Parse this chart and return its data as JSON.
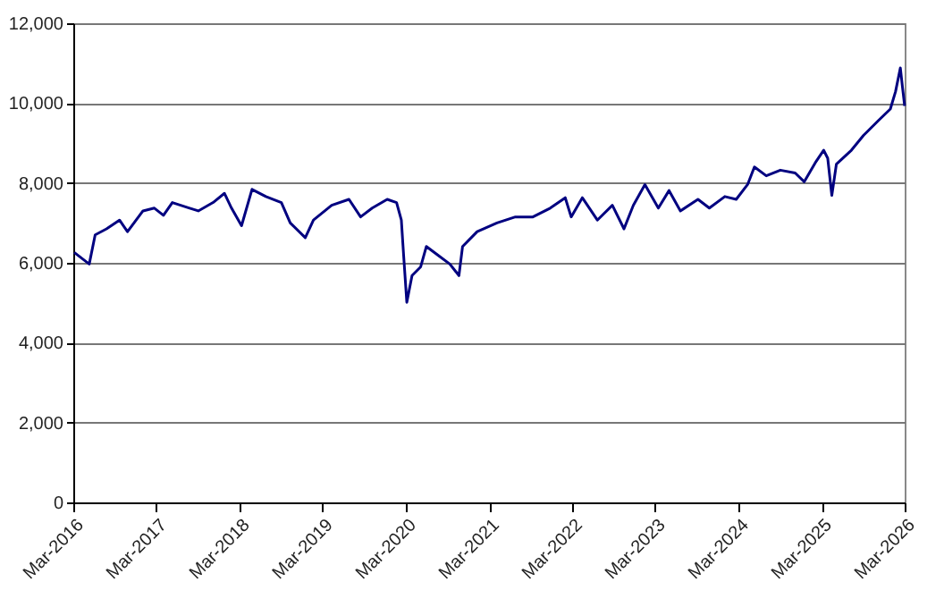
{
  "chart_data": {
    "type": "line",
    "x": [
      "2016-03-05",
      "2016-05-10",
      "2016-06-05",
      "2016-07-25",
      "2016-09-20",
      "2016-10-25",
      "2017-01-01",
      "2017-02-20",
      "2017-04-01",
      "2017-05-10",
      "2017-07-25",
      "2017-09-01",
      "2017-11-05",
      "2017-12-25",
      "2018-01-25",
      "2018-03-10",
      "2018-04-25",
      "2018-06-25",
      "2018-09-01",
      "2018-10-10",
      "2018-12-15",
      "2019-01-20",
      "2019-04-10",
      "2019-06-25",
      "2019-08-15",
      "2019-10-05",
      "2019-12-10",
      "2020-01-20",
      "2020-02-10",
      "2020-02-20",
      "2020-03-05",
      "2020-03-28",
      "2020-05-05",
      "2020-05-30",
      "2020-07-20",
      "2020-09-10",
      "2020-10-20",
      "2020-11-05",
      "2021-01-08",
      "2021-04-05",
      "2021-06-25",
      "2021-09-10",
      "2021-11-25",
      "2022-01-30",
      "2022-02-25",
      "2022-04-15",
      "2022-06-20",
      "2022-08-25",
      "2022-10-15",
      "2022-11-25",
      "2023-01-15",
      "2023-03-15",
      "2023-05-01",
      "2023-06-20",
      "2023-09-05",
      "2023-10-25",
      "2024-01-01",
      "2024-02-20",
      "2024-04-10",
      "2024-05-10",
      "2024-07-01",
      "2024-09-01",
      "2024-11-05",
      "2024-12-15",
      "2025-02-05",
      "2025-03-10",
      "2025-03-28",
      "2025-04-15",
      "2025-05-05",
      "2025-07-10",
      "2025-09-01",
      "2025-11-05",
      "2025-12-28",
      "2026-01-20",
      "2026-02-10",
      "2026-02-20",
      "2026-03-01"
    ],
    "series": [
      {
        "color": "#000080",
        "values": [
          6260,
          5970,
          6700,
          6850,
          7070,
          6780,
          7300,
          7370,
          7190,
          7510,
          7370,
          7300,
          7510,
          7740,
          7370,
          6930,
          7840,
          7660,
          7510,
          7000,
          6630,
          7070,
          7440,
          7590,
          7150,
          7370,
          7590,
          7510,
          7070,
          6190,
          5010,
          5680,
          5900,
          6410,
          6190,
          5970,
          5680,
          6410,
          6780,
          7000,
          7150,
          7150,
          7370,
          7630,
          7150,
          7630,
          7070,
          7440,
          6850,
          7440,
          7960,
          7370,
          7810,
          7300,
          7590,
          7370,
          7660,
          7590,
          7960,
          8400,
          8180,
          8320,
          8250,
          8030,
          8540,
          8820,
          8620,
          7690,
          8470,
          8820,
          9190,
          9560,
          9850,
          10290,
          10880,
          10370,
          9930
        ]
      }
    ],
    "xlim": [
      "2016-03",
      "2026-03"
    ],
    "xticks": [
      {
        "value": "2016-03",
        "label": "Mar-2016"
      },
      {
        "value": "2017-03",
        "label": "Mar-2017"
      },
      {
        "value": "2018-03",
        "label": "Mar-2018"
      },
      {
        "value": "2019-03",
        "label": "Mar-2019"
      },
      {
        "value": "2020-03",
        "label": "Mar-2020"
      },
      {
        "value": "2021-03",
        "label": "Mar-2021"
      },
      {
        "value": "2022-03",
        "label": "Mar-2022"
      },
      {
        "value": "2023-03",
        "label": "Mar-2023"
      },
      {
        "value": "2024-03",
        "label": "Mar-2024"
      },
      {
        "value": "2025-03",
        "label": "Mar-2025"
      },
      {
        "value": "2026-03",
        "label": "Mar-2026"
      }
    ],
    "ylim": [
      0,
      12000
    ],
    "yticks": [
      0,
      {
        "value": 2000,
        "label": "2,000"
      },
      {
        "value": 4000,
        "label": "4,000"
      },
      {
        "value": 6000,
        "label": "6,000"
      },
      {
        "value": 8000,
        "label": "8,000"
      },
      {
        "value": 10000,
        "label": "10,000"
      },
      {
        "value": 12000,
        "label": "12,000"
      }
    ],
    "grid": "y",
    "marker": "none",
    "line_style": "solid"
  }
}
